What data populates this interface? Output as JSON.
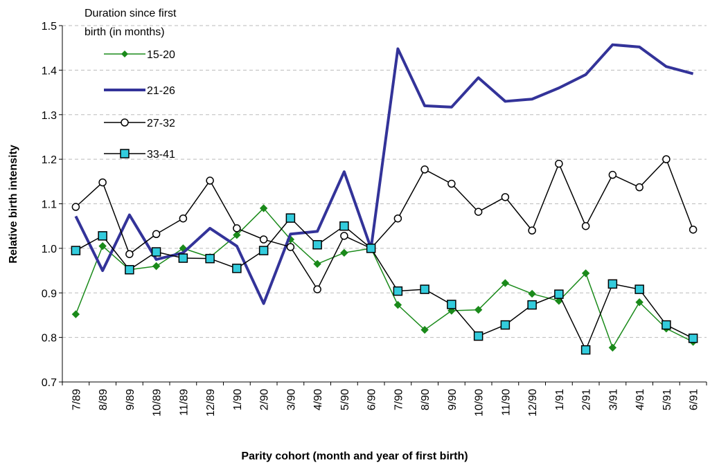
{
  "chart_data": {
    "type": "line",
    "x_label": "Parity cohort (month and year of first birth)",
    "y_label": "Relative birth intensity",
    "legend_title_lines": [
      "Duration since first",
      "birth (in months)"
    ],
    "legend": "top-left",
    "grid": true,
    "categories": [
      "7/89",
      "8/89",
      "9/89",
      "10/89",
      "11/89",
      "12/89",
      "1/90",
      "2/90",
      "3/90",
      "4/90",
      "5/90",
      "6/90",
      "7/90",
      "8/90",
      "9/90",
      "10/90",
      "11/90",
      "12/90",
      "1/91",
      "2/91",
      "3/91",
      "4/91",
      "5/91",
      "6/91"
    ],
    "ylim": [
      0.7,
      1.5
    ],
    "yticks": [
      0.7,
      0.8,
      0.9,
      {
        "value": 1,
        "label": "1.0"
      },
      1.1,
      1.2,
      1.3,
      1.4,
      1.5
    ],
    "series": [
      {
        "name": "15-20",
        "color": "#1a8a1a",
        "marker": "diamond",
        "width": 1.5,
        "values": [
          0.852,
          1.005,
          0.952,
          0.96,
          1.0,
          0.98,
          1.03,
          1.09,
          1.02,
          0.965,
          0.99,
          1.0,
          0.873,
          0.817,
          0.86,
          0.862,
          0.922,
          0.898,
          0.882,
          0.944,
          0.777,
          0.879,
          0.82,
          0.79
        ]
      },
      {
        "name": "21-26",
        "color": "#333399",
        "marker": "none",
        "width": 4,
        "values": [
          1.072,
          0.95,
          1.075,
          0.975,
          0.99,
          1.045,
          1.005,
          0.876,
          1.032,
          1.038,
          1.172,
          1.0,
          1.448,
          1.32,
          1.317,
          1.383,
          1.33,
          1.335,
          1.36,
          1.39,
          1.457,
          1.452,
          1.408,
          1.392
        ]
      },
      {
        "name": "27-32",
        "color": "#000000",
        "marker": "circle",
        "width": 1.5,
        "values": [
          1.093,
          1.148,
          0.987,
          1.032,
          1.067,
          1.152,
          1.045,
          1.02,
          1.003,
          0.908,
          1.028,
          1.0,
          1.067,
          1.177,
          1.145,
          1.082,
          1.115,
          1.04,
          1.19,
          1.05,
          1.165,
          1.137,
          1.2,
          1.042
        ]
      },
      {
        "name": "33-41",
        "color": "#000000",
        "marker": "square",
        "marker_fill": "#33ccdd",
        "width": 1.5,
        "values": [
          0.995,
          1.028,
          0.952,
          0.992,
          0.978,
          0.977,
          0.955,
          0.995,
          1.068,
          1.008,
          1.05,
          1.0,
          0.904,
          0.908,
          0.874,
          0.803,
          0.828,
          0.873,
          0.897,
          0.772,
          0.92,
          0.908,
          0.828,
          0.798
        ]
      }
    ]
  }
}
